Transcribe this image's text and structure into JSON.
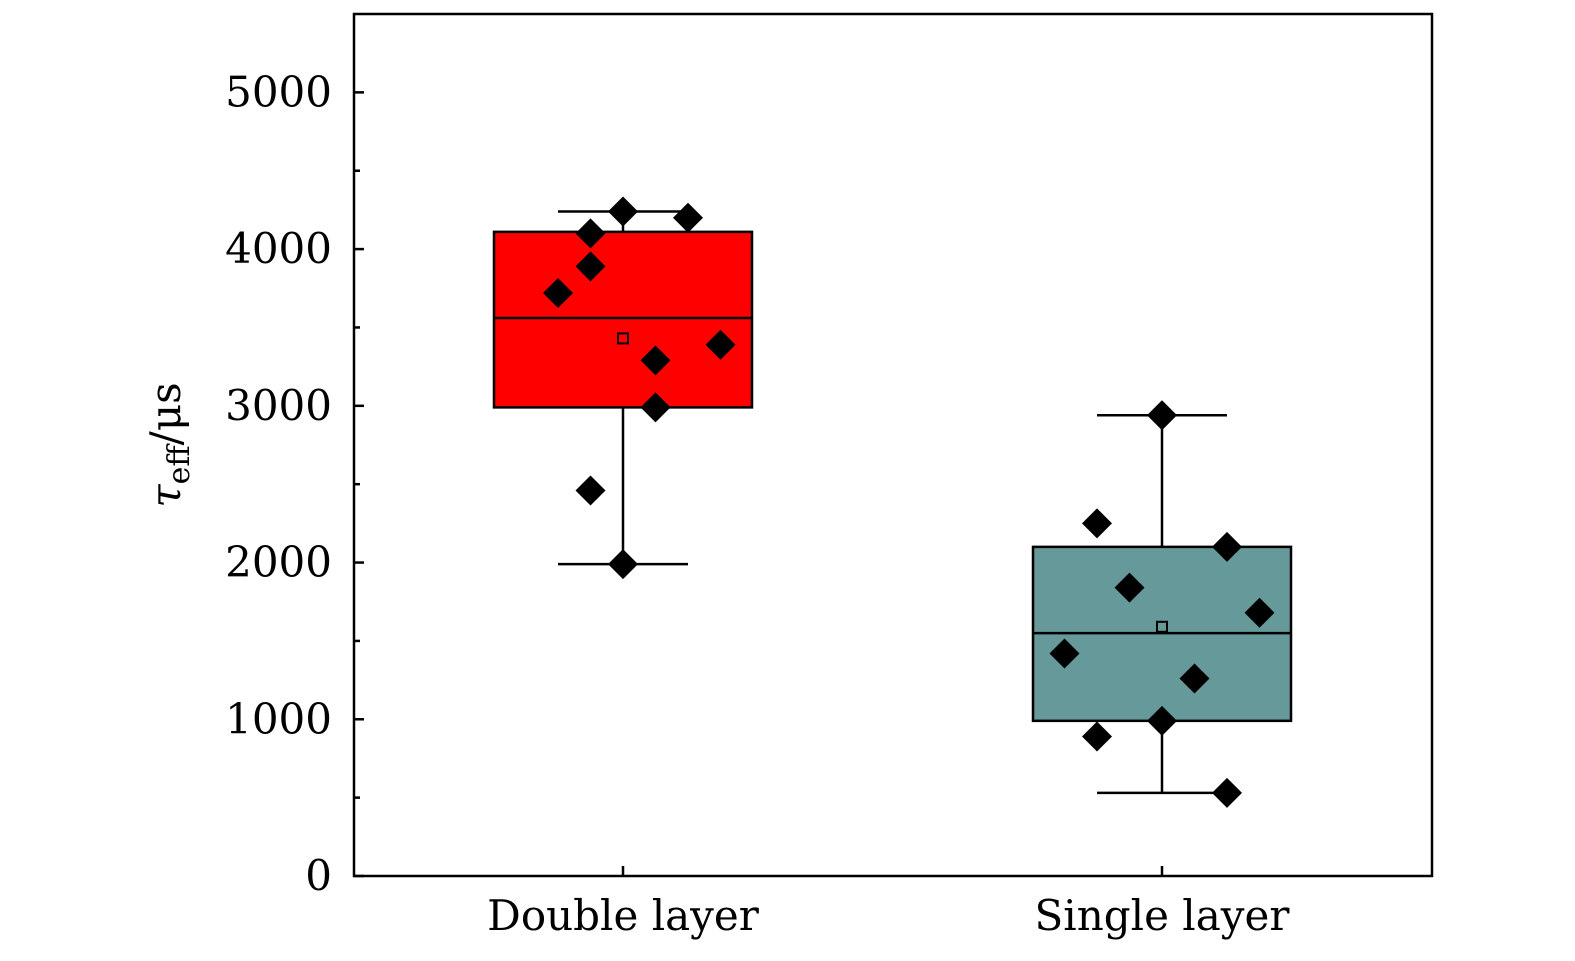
{
  "chart_data": {
    "type": "box",
    "ylabel": {
      "symbol": "τ",
      "subscript": "eff",
      "unit": "/μs"
    },
    "ylim": [
      0,
      5500
    ],
    "yticks": [
      0,
      1000,
      2000,
      3000,
      4000,
      5000
    ],
    "yticks_minor": [
      500,
      1500,
      2500,
      3500,
      4500
    ],
    "grid": false,
    "categories": [
      "Double layer",
      "Single layer"
    ],
    "boxes": [
      {
        "category": "Double layer",
        "color": "#ff0000",
        "q1": 2990,
        "median": 3560,
        "q3": 4110,
        "mean": 3430,
        "whisker_low": 1990,
        "whisker_high": 4240,
        "points": [
          {
            "x": -0.5,
            "y": 3720
          },
          {
            "x": -0.25,
            "y": 4100
          },
          {
            "x": -0.25,
            "y": 2460
          },
          {
            "x": -0.25,
            "y": 3890
          },
          {
            "x": 0,
            "y": 4240
          },
          {
            "x": 0,
            "y": 1990
          },
          {
            "x": 0.25,
            "y": 3290
          },
          {
            "x": 0.25,
            "y": 2990
          },
          {
            "x": 0.5,
            "y": 4200
          },
          {
            "x": 0.75,
            "y": 3390
          }
        ]
      },
      {
        "category": "Single layer",
        "color": "#669999",
        "q1": 990,
        "median": 1550,
        "q3": 2100,
        "mean": 1590,
        "whisker_low": 530,
        "whisker_high": 2940,
        "points": [
          {
            "x": -0.75,
            "y": 1420
          },
          {
            "x": -0.5,
            "y": 2250
          },
          {
            "x": -0.5,
            "y": 890
          },
          {
            "x": -0.25,
            "y": 1840
          },
          {
            "x": 0,
            "y": 2940
          },
          {
            "x": 0,
            "y": 990
          },
          {
            "x": 0.25,
            "y": 1260
          },
          {
            "x": 0.5,
            "y": 2100
          },
          {
            "x": 0.5,
            "y": 530
          },
          {
            "x": 0.75,
            "y": 1680
          }
        ]
      }
    ]
  }
}
